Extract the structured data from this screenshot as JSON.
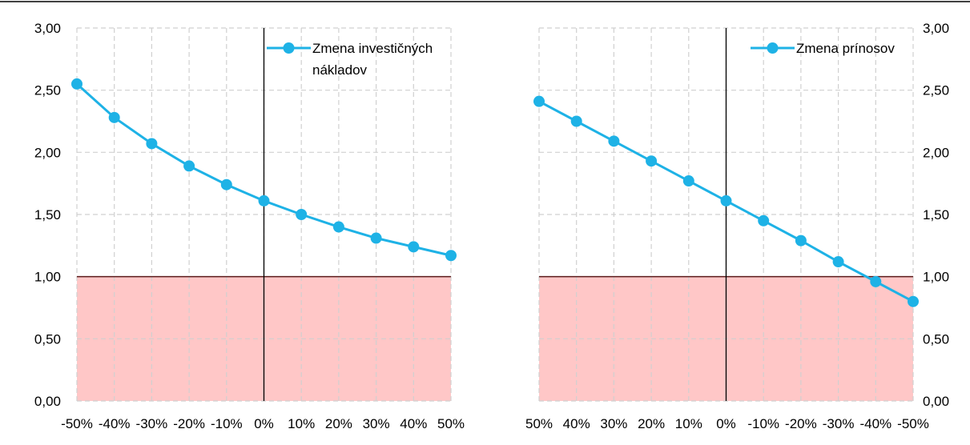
{
  "chart_data": [
    {
      "type": "line",
      "x": [
        "-50%",
        "-40%",
        "-30%",
        "-20%",
        "-10%",
        "0%",
        "10%",
        "20%",
        "30%",
        "40%",
        "50%"
      ],
      "series": [
        {
          "name": "Zmena investičných nákladov",
          "values": [
            2.55,
            2.28,
            2.07,
            1.89,
            1.74,
            1.61,
            1.5,
            1.4,
            1.31,
            1.24,
            1.17
          ]
        }
      ],
      "legend": {
        "lines": [
          "Zmena investičných",
          "nákladov"
        ],
        "position": "top-right"
      },
      "yticks": [
        "0,00",
        "0,50",
        "1,00",
        "1,50",
        "2,00",
        "2,50",
        "3,00"
      ],
      "ylim": [
        0,
        3
      ],
      "y_axis_side": "left",
      "threshold": 1.0,
      "shade_below_threshold": true,
      "grid": true
    },
    {
      "type": "line",
      "x": [
        "50%",
        "40%",
        "30%",
        "20%",
        "10%",
        "0%",
        "-10%",
        "-20%",
        "-30%",
        "-40%",
        "-50%"
      ],
      "series": [
        {
          "name": "Zmena prínosov",
          "values": [
            2.41,
            2.25,
            2.09,
            1.93,
            1.77,
            1.61,
            1.45,
            1.29,
            1.12,
            0.96,
            0.8
          ]
        }
      ],
      "legend": {
        "lines": [
          "Zmena prínosov"
        ],
        "position": "top-right"
      },
      "yticks": [
        "0,00",
        "0,50",
        "1,00",
        "1,50",
        "2,00",
        "2,50",
        "3,00"
      ],
      "ylim": [
        0,
        3
      ],
      "y_axis_side": "right",
      "threshold": 1.0,
      "shade_below_threshold": true,
      "grid": true
    }
  ],
  "colors": {
    "series": "#1EB2E6",
    "shade": "#FFC7C7",
    "threshold_line": "#5B1A1A",
    "grid": "#D0D0D0",
    "axis": "#000000",
    "frame_top": "#000000"
  }
}
